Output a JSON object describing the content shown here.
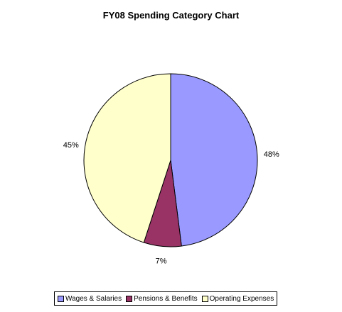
{
  "chart_data": {
    "type": "pie",
    "title": "FY08 Spending Category Chart",
    "categories": [
      "Wages & Salaries",
      "Pensions & Benefits",
      "Operating Expenses"
    ],
    "values": [
      48,
      7,
      45
    ],
    "labels": [
      "48%",
      "7%",
      "45%"
    ],
    "colors": [
      "#9999ff",
      "#993366",
      "#ffffcc"
    ],
    "legend_position": "bottom"
  }
}
